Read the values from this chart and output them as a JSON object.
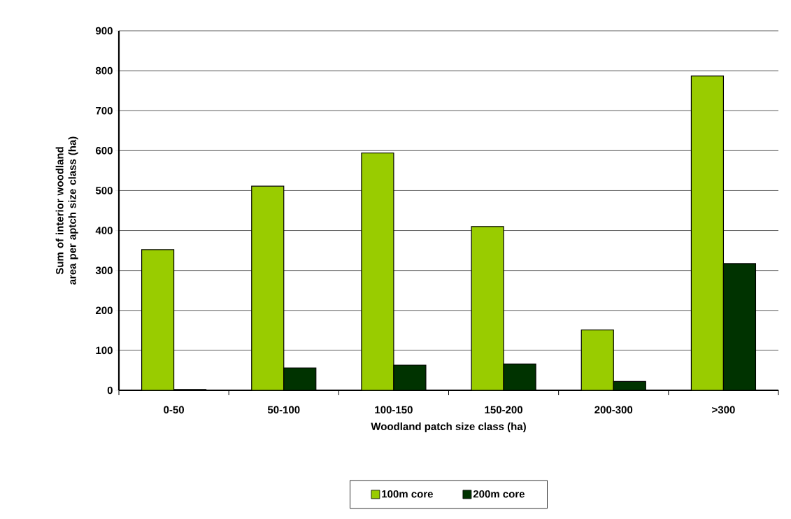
{
  "chart_data": {
    "type": "bar",
    "xlabel": "Woodland patch size class (ha)",
    "ylabel": "Sum of interior woodland area per aptch size class (ha)",
    "categories": [
      "0-50",
      "50-100",
      "100-150",
      "150-200",
      "200-300",
      ">300"
    ],
    "series": [
      {
        "name": "100m core",
        "color": "#99cc00",
        "values": [
          352,
          511,
          594,
          410,
          151,
          787
        ]
      },
      {
        "name": "200m core",
        "color": "#003300",
        "values": [
          2,
          56,
          63,
          66,
          22,
          317
        ]
      }
    ],
    "ylim": [
      0,
      900
    ],
    "yticks": [
      0,
      100,
      200,
      300,
      400,
      500,
      600,
      700,
      800,
      900
    ],
    "grid": "y",
    "legend": "bottom"
  }
}
